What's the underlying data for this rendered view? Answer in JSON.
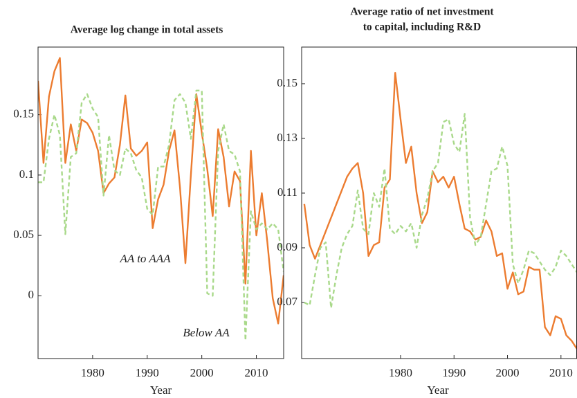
{
  "chart_data": [
    {
      "type": "line",
      "title": "Average log change in total assets",
      "xlabel": "Year",
      "x": [
        1970,
        1971,
        1972,
        1973,
        1974,
        1975,
        1976,
        1977,
        1978,
        1979,
        1980,
        1981,
        1982,
        1983,
        1984,
        1985,
        1986,
        1987,
        1988,
        1989,
        1990,
        1991,
        1992,
        1993,
        1994,
        1995,
        1996,
        1997,
        1998,
        1999,
        2000,
        2001,
        2002,
        2003,
        2004,
        2005,
        2006,
        2007,
        2008,
        2009,
        2010,
        2011,
        2012,
        2013,
        2014,
        2015
      ],
      "xlim": [
        1970,
        2015
      ],
      "xticks": [
        1980,
        1990,
        2000,
        2010
      ],
      "ylim": [
        -0.052,
        0.206
      ],
      "yticks": [
        0,
        0.05,
        0.1,
        0.15
      ],
      "series": [
        {
          "name": "AA to AAA",
          "color": "#ec7c30",
          "dash": false,
          "values": [
            0.178,
            0.11,
            0.165,
            0.186,
            0.197,
            0.11,
            0.142,
            0.12,
            0.146,
            0.143,
            0.135,
            0.12,
            0.085,
            0.093,
            0.098,
            0.125,
            0.166,
            0.122,
            0.116,
            0.12,
            0.127,
            0.056,
            0.08,
            0.092,
            0.12,
            0.137,
            0.09,
            0.027,
            0.1,
            0.167,
            0.135,
            0.105,
            0.066,
            0.138,
            0.115,
            0.074,
            0.103,
            0.095,
            0.01,
            0.12,
            0.05,
            0.085,
            0.045,
            -0.002,
            -0.023,
            0.017
          ]
        },
        {
          "name": "Below AA",
          "color": "#a9d98a",
          "dash": true,
          "values": [
            0.094,
            0.094,
            0.13,
            0.15,
            0.133,
            0.051,
            0.115,
            0.118,
            0.16,
            0.167,
            0.155,
            0.148,
            0.083,
            0.133,
            0.104,
            0.1,
            0.122,
            0.118,
            0.104,
            0.098,
            0.072,
            0.067,
            0.107,
            0.107,
            0.125,
            0.162,
            0.167,
            0.16,
            0.13,
            0.17,
            0.17,
            0.002,
            0,
            0.12,
            0.142,
            0.12,
            0.117,
            0.103,
            -0.037,
            0.07,
            0.055,
            0.06,
            0.055,
            0.06,
            0.055,
            0.02
          ]
        }
      ]
    },
    {
      "type": "line",
      "title": [
        "Average ratio of net investment",
        "to capital, including R&D"
      ],
      "xlabel": "Year",
      "x": [
        1962,
        1963,
        1964,
        1965,
        1966,
        1967,
        1968,
        1969,
        1970,
        1971,
        1972,
        1973,
        1974,
        1975,
        1976,
        1977,
        1978,
        1979,
        1980,
        1981,
        1982,
        1983,
        1984,
        1985,
        1986,
        1987,
        1988,
        1989,
        1990,
        1991,
        1992,
        1993,
        1994,
        1995,
        1996,
        1997,
        1998,
        1999,
        2000,
        2001,
        2002,
        2003,
        2004,
        2005,
        2006,
        2007,
        2008,
        2009,
        2010,
        2011,
        2012,
        2013
      ],
      "xlim": [
        1961.5,
        2013
      ],
      "xticks": [
        1980,
        1990,
        2000,
        2010
      ],
      "ylim": [
        0.0495,
        0.1634
      ],
      "yticks": [
        0.07,
        0.09,
        0.11,
        0.13,
        0.15
      ],
      "series": [
        {
          "color": "#ec7c30",
          "dash": false,
          "values": [
            0.106,
            0.091,
            0.086,
            0.091,
            0.096,
            0.101,
            0.106,
            0.111,
            0.116,
            0.119,
            0.121,
            0.11,
            0.087,
            0.091,
            0.092,
            0.112,
            0.115,
            0.154,
            0.137,
            0.121,
            0.127,
            0.11,
            0.099,
            0.103,
            0.118,
            0.114,
            0.116,
            0.112,
            0.116,
            0.106,
            0.097,
            0.096,
            0.093,
            0.094,
            0.1,
            0.096,
            0.087,
            0.088,
            0.075,
            0.081,
            0.073,
            0.074,
            0.083,
            0.082,
            0.082,
            0.061,
            0.058,
            0.065,
            0.064,
            0.058,
            0.056,
            0.053
          ]
        },
        {
          "color": "#a9d98a",
          "dash": true,
          "values": [
            0.07,
            0.069,
            0.08,
            0.09,
            0.092,
            0.068,
            0.08,
            0.09,
            0.095,
            0.098,
            0.111,
            0.097,
            0.095,
            0.11,
            0.105,
            0.119,
            0.097,
            0.095,
            0.098,
            0.096,
            0.099,
            0.09,
            0.102,
            0.108,
            0.118,
            0.121,
            0.136,
            0.137,
            0.128,
            0.125,
            0.139,
            0.101,
            0.091,
            0.094,
            0.106,
            0.118,
            0.119,
            0.127,
            0.12,
            0.084,
            0.077,
            0.082,
            0.089,
            0.088,
            0.085,
            0.082,
            0.08,
            0.083,
            0.089,
            0.087,
            0.084,
            0.081
          ]
        }
      ]
    }
  ]
}
